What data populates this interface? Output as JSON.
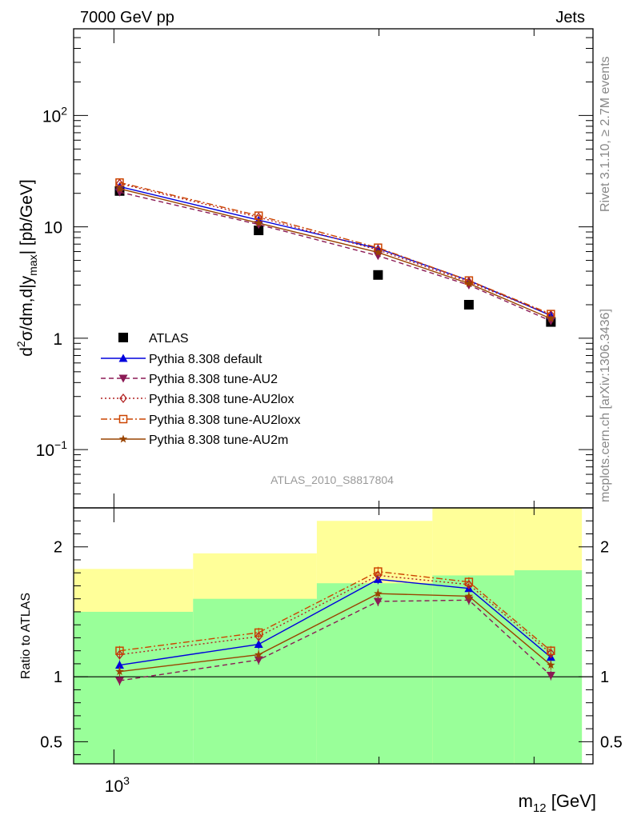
{
  "header": {
    "left": "7000 GeV pp",
    "right": "Jets"
  },
  "side_text": {
    "top": "Rivet 3.1.10, ≥ 2.7M events",
    "bottom": "mcplots.cern.ch [arXiv:1306.3436]"
  },
  "watermark": "ATLAS_2010_S8817804",
  "chart_data": [
    {
      "type": "line",
      "name": "main",
      "ylabel": "d²σ/dm,d|y_max| [pb/GeV]",
      "ylabel_parts": {
        "d": "d",
        "sup": "2",
        "mid": "σ/dm,d|y",
        "sub": "max",
        "end": "| [pb/GeV]"
      },
      "yscale": "log",
      "ylim": [
        0.03,
        600
      ],
      "xscale": "log",
      "xlim": [
        900,
        3500
      ],
      "y_tick_labels": [
        {
          "value": 0.1,
          "base": "10",
          "exp": "−1"
        },
        {
          "value": 1,
          "base": "1",
          "exp": ""
        },
        {
          "value": 10,
          "base": "10",
          "exp": ""
        },
        {
          "value": 100,
          "base": "10",
          "exp": "2"
        }
      ],
      "x": [
        1015,
        1460,
        1995,
        2530,
        3135
      ],
      "series": [
        {
          "name": "ATLAS",
          "color": "#000000",
          "marker": "square",
          "dash": "none",
          "values": [
            21.0,
            9.3,
            3.7,
            2.0,
            1.4
          ]
        },
        {
          "name": "Pythia 8.308 default",
          "color": "#0000dd",
          "marker": "triangle-up",
          "dash": "solid",
          "values": [
            23.0,
            11.5,
            6.4,
            3.3,
            1.6
          ]
        },
        {
          "name": "Pythia 8.308 tune-AU2",
          "color": "#8b1a55",
          "marker": "triangle-down",
          "dash": "dashed",
          "values": [
            20.5,
            10.5,
            5.5,
            3.0,
            1.43
          ]
        },
        {
          "name": "Pythia 8.308 tune-AU2lox",
          "color": "#b22222",
          "marker": "diamond",
          "dash": "dotted",
          "values": [
            24.5,
            12.2,
            6.2,
            3.2,
            1.62
          ]
        },
        {
          "name": "Pythia 8.308 tune-AU2loxx",
          "color": "#cc4400",
          "marker": "square-open",
          "dash": "dashdot",
          "values": [
            25.0,
            12.6,
            6.5,
            3.3,
            1.65
          ]
        },
        {
          "name": "Pythia 8.308 tune-AU2m",
          "color": "#994400",
          "marker": "star",
          "dash": "solid",
          "values": [
            22.0,
            10.8,
            5.9,
            3.1,
            1.5
          ]
        }
      ],
      "legend_position": "bottom-left"
    },
    {
      "type": "line",
      "name": "ratio",
      "ylabel": "Ratio to ATLAS",
      "ylim": [
        0.33,
        2.3
      ],
      "y_tick_labels": [
        {
          "value": 0.5,
          "label": "0.5"
        },
        {
          "value": 1,
          "label": "1"
        },
        {
          "value": 2,
          "label": "2"
        }
      ],
      "x_tick_labels": [
        {
          "value": 1000,
          "base": "10",
          "exp": "3"
        }
      ],
      "xlabel": "m_12 [GeV]",
      "xlabel_parts": {
        "main": "m",
        "sub": "12",
        "end": " [GeV]"
      },
      "bands": [
        {
          "x0": 900,
          "x1": 1230,
          "yellow": [
            0.58,
            1.83
          ],
          "green": [
            0.33,
            1.5
          ]
        },
        {
          "x0": 1230,
          "x1": 1700,
          "yellow": [
            0.52,
            1.95
          ],
          "green": [
            0.33,
            1.6
          ]
        },
        {
          "x0": 1700,
          "x1": 2300,
          "yellow": [
            0.33,
            2.2
          ],
          "green": [
            0.33,
            1.72
          ]
        },
        {
          "x0": 2300,
          "x1": 2850,
          "yellow": [
            0.33,
            2.3
          ],
          "green": [
            0.33,
            1.78
          ]
        },
        {
          "x0": 2850,
          "x1": 3400,
          "yellow": [
            0.33,
            2.3
          ],
          "green": [
            0.33,
            1.82
          ]
        }
      ],
      "series": [
        {
          "name": "Pythia 8.308 default",
          "values": [
            1.09,
            1.25,
            1.75,
            1.68,
            1.15
          ]
        },
        {
          "name": "Pythia 8.308 tune-AU2",
          "values": [
            0.97,
            1.13,
            1.58,
            1.59,
            1.01
          ]
        },
        {
          "name": "Pythia 8.308 tune-AU2lox",
          "values": [
            1.17,
            1.31,
            1.78,
            1.71,
            1.18
          ]
        },
        {
          "name": "Pythia 8.308 tune-AU2loxx",
          "values": [
            1.2,
            1.34,
            1.81,
            1.73,
            1.2
          ]
        },
        {
          "name": "Pythia 8.308 tune-AU2m",
          "values": [
            1.04,
            1.17,
            1.64,
            1.62,
            1.09
          ]
        }
      ]
    }
  ]
}
